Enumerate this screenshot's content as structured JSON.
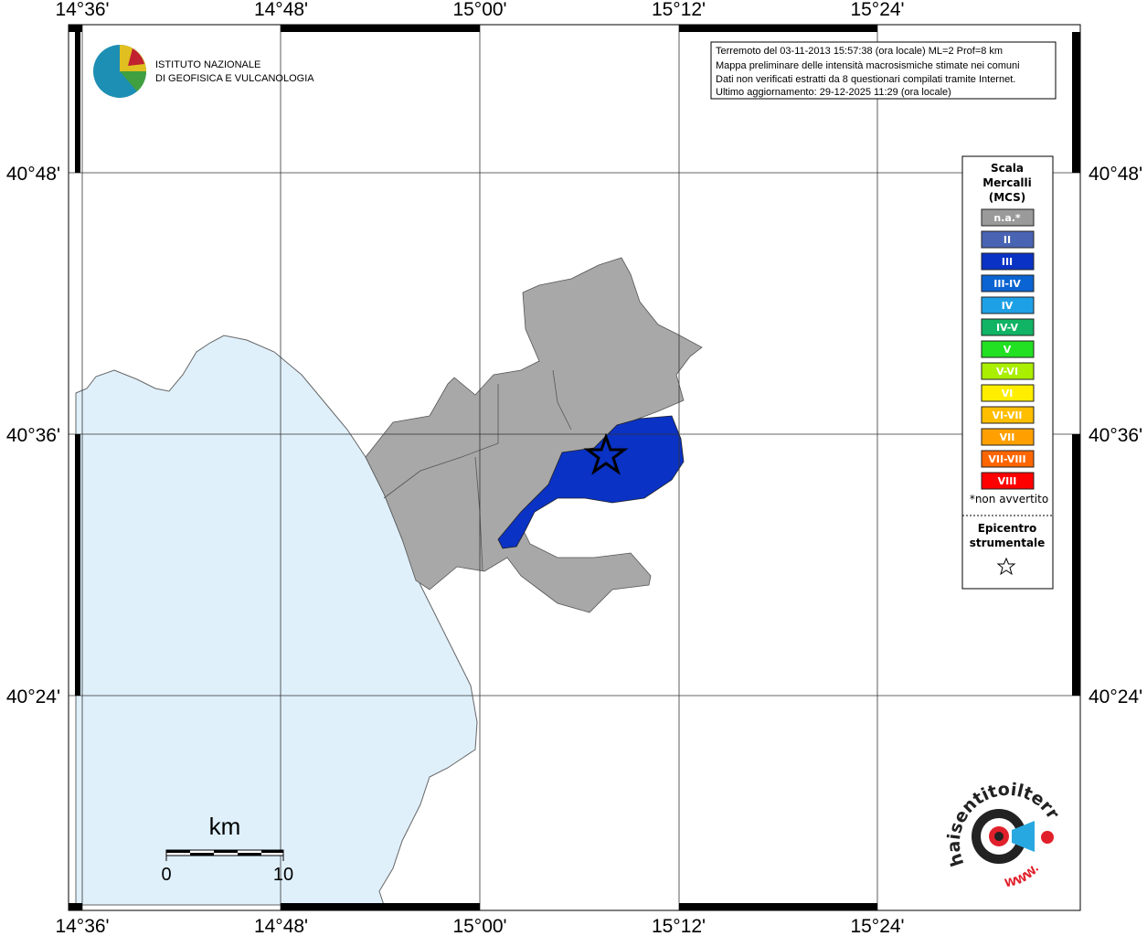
{
  "logo": {
    "line1": "ISTITUTO NAZIONALE",
    "line2": "DI GEOFISICA E VULCANOLOGIA"
  },
  "info_box": {
    "lines": [
      "Terremoto del 03-11-2013 15:57:38 (ora locale) ML=2 Prof=8 km",
      "Mappa preliminare delle intensità macrosismiche stimate nei comuni",
      "Dati non verificati estratti da 8 questionari compilati tramite Internet.",
      "Ultimo aggiornamento: 29-12-2025 11:29 (ora locale)"
    ]
  },
  "axes": {
    "top_labels": [
      "14°36'",
      "14°48'",
      "15°00'",
      "15°12'",
      "15°24'"
    ],
    "bottom_labels": [
      "14°36'",
      "14°48'",
      "15°00'",
      "15°12'",
      "15°24'"
    ],
    "left_labels": [
      "40°48'",
      "40°36'",
      "40°24'"
    ],
    "right_labels": [
      "40°48'",
      "40°36'",
      "40°24'"
    ]
  },
  "legend": {
    "title": [
      "Scala",
      "Mercalli",
      "(MCS)"
    ],
    "items": [
      {
        "label": "n.a.*",
        "color": "#9a9a9a"
      },
      {
        "label": "II",
        "color": "#4a64b4"
      },
      {
        "label": "III",
        "color": "#0a32c4"
      },
      {
        "label": "III-IV",
        "color": "#0a64d2"
      },
      {
        "label": "IV",
        "color": "#1ea0e6"
      },
      {
        "label": "IV-V",
        "color": "#10b464"
      },
      {
        "label": "V",
        "color": "#22e022"
      },
      {
        "label": "V-VI",
        "color": "#aaee00"
      },
      {
        "label": "VI",
        "color": "#ffee00"
      },
      {
        "label": "VI-VII",
        "color": "#ffbe00"
      },
      {
        "label": "VII",
        "color": "#ffa000"
      },
      {
        "label": "VII-VIII",
        "color": "#ff6600"
      },
      {
        "label": "VIII",
        "color": "#ff0000"
      }
    ],
    "note": "*non avvertito",
    "epicentre": [
      "Epicentro",
      "strumentale"
    ]
  },
  "scale_bar": {
    "unit": "km",
    "labels": [
      "0",
      "10"
    ]
  },
  "site_logo": {
    "text": "haisentitoilterremoto.it",
    "url": "WWW."
  }
}
